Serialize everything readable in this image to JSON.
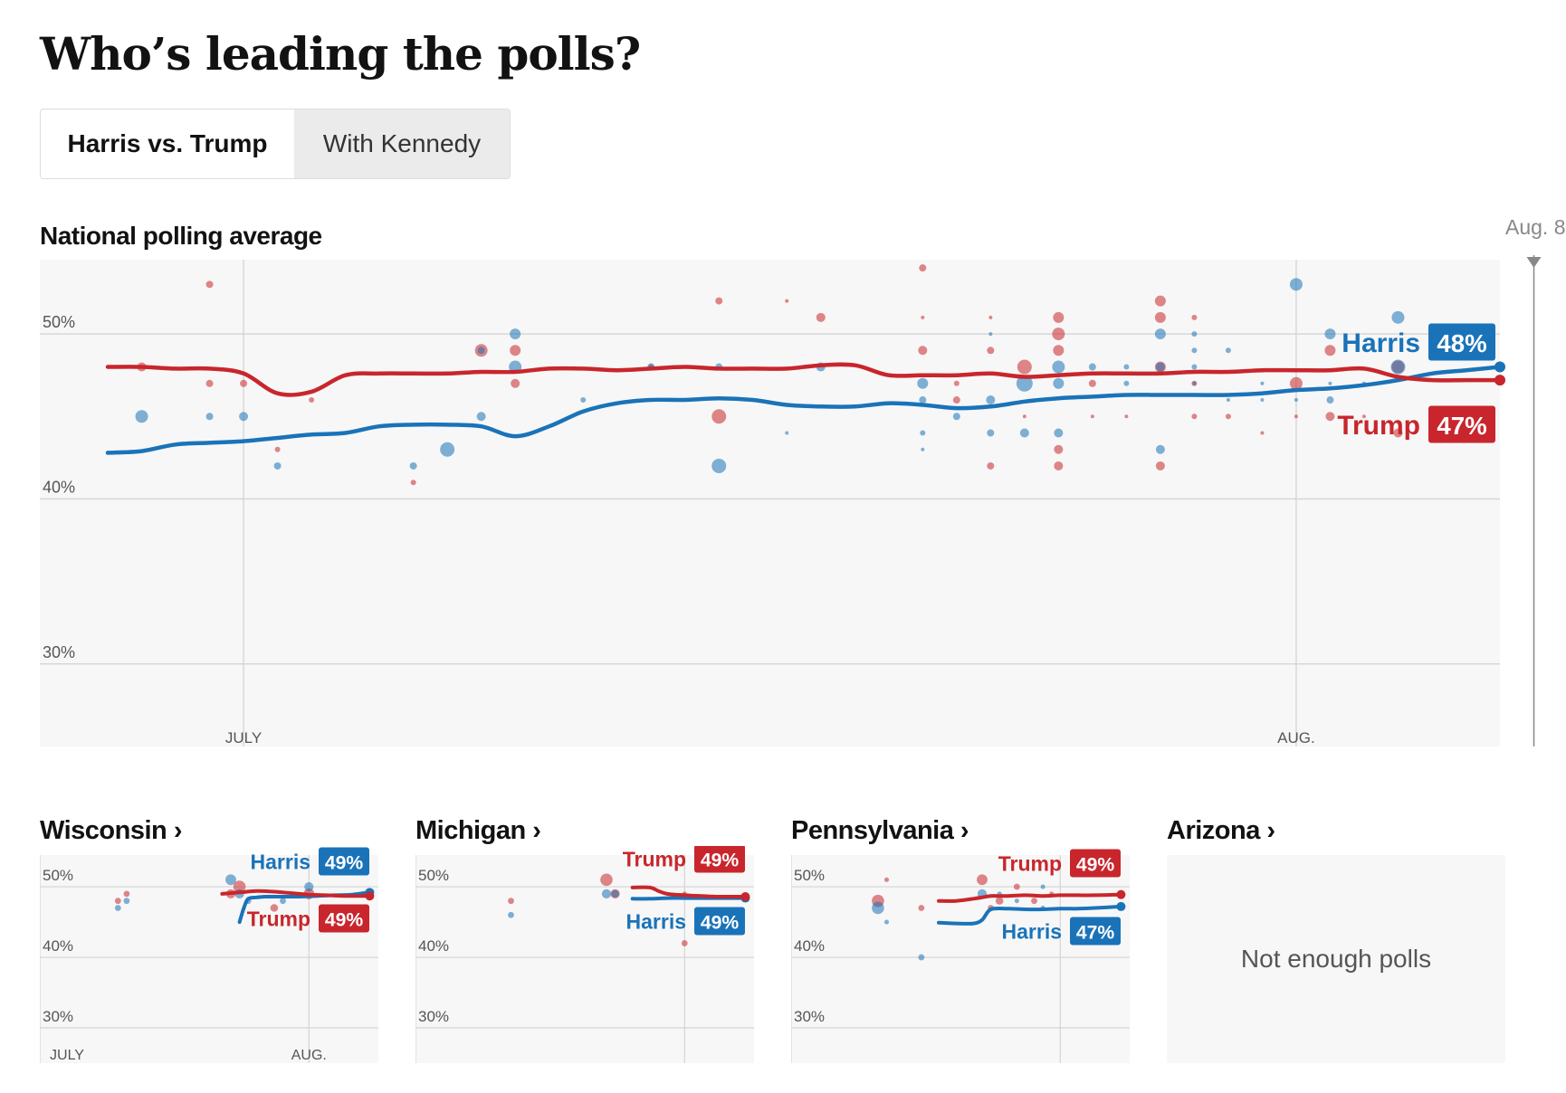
{
  "page": {
    "title": "Who’s leading the polls?",
    "tabs": [
      {
        "label": "Harris vs. Trump",
        "active": true
      },
      {
        "label": "With Kennedy",
        "active": false
      }
    ],
    "colors": {
      "harris": "#1a73b8",
      "trump": "#c8262c",
      "panel_bg": "#f7f7f7",
      "grid": "#dddddd"
    }
  },
  "chart_data": [
    {
      "type": "line",
      "title": "National polling average",
      "ylim": [
        25,
        54.5
      ],
      "yticks": [
        {
          "value": 50,
          "label": "50%"
        },
        {
          "value": 40,
          "label": "40%"
        },
        {
          "value": 30,
          "label": "30%"
        }
      ],
      "xlim": [
        -6,
        37
      ],
      "xticks": [
        {
          "value": 0,
          "label": "JULY"
        },
        {
          "value": 31,
          "label": "AUG."
        }
      ],
      "end_marker": {
        "value": 38,
        "label": "Aug. 8"
      },
      "series": [
        {
          "name": "Harris",
          "end_label": "48%",
          "color": "#1a73b8",
          "x": [
            -4,
            -3,
            -2,
            -1,
            0,
            1,
            2,
            3,
            4,
            5,
            6,
            7,
            8,
            9,
            10,
            11,
            12,
            13,
            14,
            15,
            16,
            17,
            18,
            19,
            20,
            21,
            22,
            23,
            24,
            25,
            26,
            27,
            28,
            29,
            30,
            31,
            32,
            33,
            34,
            35,
            36,
            37
          ],
          "y": [
            42.8,
            42.9,
            43.3,
            43.4,
            43.5,
            43.7,
            43.9,
            44.0,
            44.4,
            44.5,
            44.5,
            44.4,
            43.8,
            44.4,
            45.3,
            45.8,
            46.0,
            46.0,
            46.1,
            46.0,
            45.7,
            45.6,
            45.6,
            45.8,
            45.7,
            45.5,
            45.6,
            45.9,
            46.1,
            46.2,
            46.3,
            46.3,
            46.3,
            46.3,
            46.4,
            46.6,
            46.7,
            46.9,
            47.2,
            47.6,
            47.8,
            48.0
          ]
        },
        {
          "name": "Trump",
          "end_label": "47%",
          "color": "#c8262c",
          "x": [
            -4,
            -3,
            -2,
            -1,
            0,
            1,
            2,
            3,
            4,
            5,
            6,
            7,
            8,
            9,
            10,
            11,
            12,
            13,
            14,
            15,
            16,
            17,
            18,
            19,
            20,
            21,
            22,
            23,
            24,
            25,
            26,
            27,
            28,
            29,
            30,
            31,
            32,
            33,
            34,
            35,
            36,
            37
          ],
          "y": [
            48.0,
            48.0,
            47.9,
            47.9,
            47.6,
            46.4,
            46.5,
            47.5,
            47.6,
            47.6,
            47.6,
            47.7,
            47.7,
            47.9,
            47.9,
            47.8,
            47.9,
            48.0,
            47.9,
            47.9,
            47.9,
            48.1,
            48.1,
            47.5,
            47.5,
            47.5,
            47.6,
            47.4,
            47.5,
            47.6,
            47.6,
            47.6,
            47.7,
            47.7,
            47.8,
            47.8,
            47.8,
            47.9,
            47.4,
            47.2,
            47.2,
            47.2
          ]
        }
      ],
      "polls": {
        "harris": [
          [
            -3,
            45,
            7
          ],
          [
            -1,
            45,
            4
          ],
          [
            0,
            45,
            5
          ],
          [
            1,
            42,
            4
          ],
          [
            5,
            42,
            4
          ],
          [
            6,
            43,
            8
          ],
          [
            7,
            49,
            4
          ],
          [
            7,
            45,
            5
          ],
          [
            8,
            50,
            6
          ],
          [
            8,
            48,
            7
          ],
          [
            10,
            46,
            3
          ],
          [
            12,
            48,
            4
          ],
          [
            14,
            42,
            8
          ],
          [
            14,
            48,
            4
          ],
          [
            16,
            44,
            2
          ],
          [
            17,
            48,
            5
          ],
          [
            20,
            47,
            6
          ],
          [
            20,
            46,
            4
          ],
          [
            20,
            44,
            3
          ],
          [
            20,
            43,
            2
          ],
          [
            21,
            45,
            4
          ],
          [
            22,
            46,
            5
          ],
          [
            22,
            50,
            2
          ],
          [
            22,
            44,
            4
          ],
          [
            23,
            47,
            9
          ],
          [
            23,
            44,
            5
          ],
          [
            24,
            48,
            7
          ],
          [
            24,
            47,
            6
          ],
          [
            24,
            44,
            5
          ],
          [
            25,
            48,
            4
          ],
          [
            26,
            48,
            3
          ],
          [
            26,
            47,
            3
          ],
          [
            27,
            48,
            5
          ],
          [
            27,
            43,
            5
          ],
          [
            27,
            50,
            6
          ],
          [
            28,
            49,
            3
          ],
          [
            28,
            50,
            3
          ],
          [
            28,
            48,
            3
          ],
          [
            28,
            47,
            2
          ],
          [
            29,
            49,
            3
          ],
          [
            29,
            46,
            2
          ],
          [
            30,
            46,
            2
          ],
          [
            30,
            47,
            2
          ],
          [
            31,
            46,
            2
          ],
          [
            31,
            53,
            7
          ],
          [
            32,
            50,
            6
          ],
          [
            32,
            46,
            4
          ],
          [
            32,
            47,
            2
          ],
          [
            33,
            47,
            2
          ],
          [
            34,
            51,
            7
          ],
          [
            34,
            48,
            8
          ]
        ],
        "trump": [
          [
            -3,
            48,
            5
          ],
          [
            -1,
            53,
            4
          ],
          [
            -1,
            47,
            4
          ],
          [
            0,
            47,
            4
          ],
          [
            1,
            43,
            3
          ],
          [
            2,
            46,
            3
          ],
          [
            5,
            41,
            3
          ],
          [
            7,
            49,
            7
          ],
          [
            8,
            47,
            5
          ],
          [
            8,
            49,
            6
          ],
          [
            12,
            48,
            3
          ],
          [
            14,
            52,
            4
          ],
          [
            14,
            45,
            8
          ],
          [
            16,
            52,
            2
          ],
          [
            17,
            51,
            5
          ],
          [
            20,
            54,
            4
          ],
          [
            20,
            51,
            2
          ],
          [
            20,
            49,
            5
          ],
          [
            21,
            47,
            3
          ],
          [
            21,
            46,
            4
          ],
          [
            22,
            51,
            2
          ],
          [
            22,
            49,
            4
          ],
          [
            22,
            42,
            4
          ],
          [
            23,
            45,
            2
          ],
          [
            23,
            48,
            8
          ],
          [
            24,
            51,
            6
          ],
          [
            24,
            50,
            7
          ],
          [
            24,
            49,
            6
          ],
          [
            24,
            43,
            5
          ],
          [
            24,
            42,
            5
          ],
          [
            25,
            47,
            4
          ],
          [
            25,
            45,
            2
          ],
          [
            26,
            45,
            2
          ],
          [
            27,
            52,
            6
          ],
          [
            27,
            51,
            6
          ],
          [
            27,
            48,
            6
          ],
          [
            27,
            42,
            5
          ],
          [
            28,
            51,
            3
          ],
          [
            28,
            47,
            3
          ],
          [
            28,
            45,
            3
          ],
          [
            29,
            45,
            3
          ],
          [
            30,
            44,
            2
          ],
          [
            31,
            47,
            7
          ],
          [
            31,
            45,
            2
          ],
          [
            32,
            49,
            6
          ],
          [
            32,
            45,
            5
          ],
          [
            33,
            45,
            2
          ],
          [
            34,
            48,
            7
          ],
          [
            34,
            44,
            5
          ]
        ]
      }
    },
    {
      "type": "line",
      "title": "Wisconsin ›",
      "ylim": [
        25,
        54.5
      ],
      "yticks": [
        {
          "value": 50,
          "label": "50%"
        },
        {
          "value": 40,
          "label": "40%"
        },
        {
          "value": 30,
          "label": "30%"
        }
      ],
      "xlim": [
        0,
        39
      ],
      "xticks": [
        {
          "value": 0,
          "label": "JULY"
        },
        {
          "value": 31,
          "label": "AUG."
        }
      ],
      "series": [
        {
          "name": "Harris",
          "end_label": "49%",
          "color": "#1a73b8",
          "x": [
            23,
            23.5,
            24,
            25,
            26,
            28,
            30,
            32,
            34,
            36,
            38
          ],
          "y": [
            45,
            47,
            48.3,
            48.5,
            48.6,
            48.6,
            48.6,
            48.7,
            48.8,
            48.9,
            49.2
          ]
        },
        {
          "name": "Trump",
          "end_label": "49%",
          "color": "#c8262c",
          "x": [
            21,
            23,
            25,
            27,
            29,
            31,
            33,
            35,
            37,
            38
          ],
          "y": [
            49.0,
            49.2,
            49.4,
            49.3,
            49.1,
            48.9,
            48.8,
            48.7,
            48.7,
            48.7
          ]
        }
      ],
      "polls": {
        "harris": [
          [
            9,
            47,
            4
          ],
          [
            10,
            48,
            4
          ],
          [
            22,
            51,
            7
          ],
          [
            23,
            49,
            6
          ],
          [
            24,
            48,
            4
          ],
          [
            28,
            48,
            4
          ],
          [
            31,
            50,
            6
          ]
        ],
        "trump": [
          [
            9,
            48,
            4
          ],
          [
            10,
            49,
            4
          ],
          [
            22,
            49,
            6
          ],
          [
            23,
            50,
            8
          ],
          [
            27,
            47,
            5
          ],
          [
            31,
            49,
            7
          ]
        ]
      }
    },
    {
      "type": "line",
      "title": "Michigan ›",
      "ylim": [
        25,
        54.5
      ],
      "yticks": [
        {
          "value": 50,
          "label": "50%"
        },
        {
          "value": 40,
          "label": "40%"
        },
        {
          "value": 30,
          "label": "30%"
        }
      ],
      "xlim": [
        0,
        39
      ],
      "xticks": [
        {
          "value": 0,
          "label": "JULY"
        },
        {
          "value": 31,
          "label": "AUG."
        }
      ],
      "series": [
        {
          "name": "Harris",
          "end_label": "49%",
          "color": "#1a73b8",
          "x": [
            25,
            27,
            29,
            31,
            33,
            35,
            37,
            38
          ],
          "y": [
            48.3,
            48.3,
            48.4,
            48.4,
            48.4,
            48.4,
            48.4,
            48.4
          ]
        },
        {
          "name": "Trump",
          "end_label": "49%",
          "color": "#c8262c",
          "x": [
            25,
            27,
            28,
            29,
            31,
            33,
            35,
            37,
            38
          ],
          "y": [
            49.9,
            49.9,
            49.4,
            49.0,
            48.8,
            48.7,
            48.6,
            48.6,
            48.6
          ]
        }
      ],
      "polls": {
        "harris": [
          [
            11,
            46,
            4
          ],
          [
            22,
            49,
            6
          ],
          [
            23,
            49,
            5
          ]
        ],
        "trump": [
          [
            11,
            48,
            4
          ],
          [
            22,
            51,
            8
          ],
          [
            23,
            49,
            6
          ],
          [
            31,
            49,
            3
          ],
          [
            31,
            42,
            4
          ]
        ]
      }
    },
    {
      "type": "line",
      "title": "Pennsylvania ›",
      "ylim": [
        25,
        54.5
      ],
      "yticks": [
        {
          "value": 50,
          "label": "50%"
        },
        {
          "value": 40,
          "label": "40%"
        },
        {
          "value": 30,
          "label": "30%"
        }
      ],
      "xlim": [
        0,
        39
      ],
      "xticks": [
        {
          "value": 0,
          "label": "JULY"
        },
        {
          "value": 31,
          "label": "AUG."
        }
      ],
      "series": [
        {
          "name": "Harris",
          "end_label": "47%",
          "color": "#1a73b8",
          "x": [
            17,
            19,
            21,
            22,
            23,
            25,
            27,
            29,
            31,
            33,
            35,
            38
          ],
          "y": [
            44.9,
            44.8,
            44.8,
            45.3,
            46.8,
            46.9,
            46.8,
            46.8,
            46.9,
            46.9,
            47.0,
            47.2
          ]
        },
        {
          "name": "Trump",
          "end_label": "49%",
          "color": "#c8262c",
          "x": [
            17,
            19,
            21,
            22,
            23,
            25,
            27,
            29,
            31,
            33,
            35,
            38
          ],
          "y": [
            48.0,
            48.0,
            48.3,
            48.5,
            48.7,
            48.7,
            48.8,
            48.7,
            48.8,
            48.8,
            48.8,
            48.9
          ]
        }
      ],
      "polls": {
        "harris": [
          [
            10,
            47,
            8
          ],
          [
            11,
            45,
            3
          ],
          [
            15,
            40,
            4
          ],
          [
            22,
            49,
            6
          ],
          [
            24,
            49,
            3
          ],
          [
            26,
            48,
            3
          ],
          [
            29,
            50,
            3
          ],
          [
            29,
            47,
            3
          ]
        ],
        "trump": [
          [
            10,
            48,
            8
          ],
          [
            11,
            51,
            3
          ],
          [
            15,
            47,
            4
          ],
          [
            22,
            51,
            7
          ],
          [
            23,
            47,
            4
          ],
          [
            24,
            48,
            5
          ],
          [
            26,
            50,
            4
          ],
          [
            28,
            48,
            4
          ],
          [
            30,
            49,
            3
          ]
        ]
      }
    }
  ],
  "arizona": {
    "title": "Arizona ›",
    "message": "Not enough polls"
  }
}
